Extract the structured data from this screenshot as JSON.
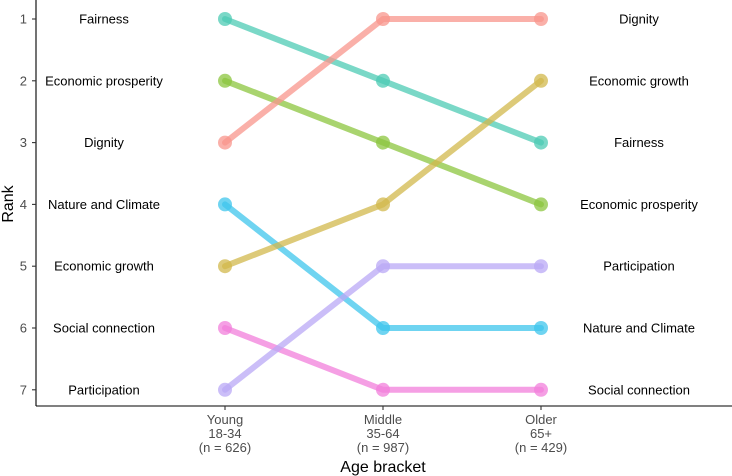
{
  "chart_data": {
    "type": "line",
    "title": "",
    "xlabel": "Age bracket",
    "ylabel": "Rank",
    "categories": [
      {
        "lines": [
          "Young",
          "18-34",
          "(n = 626)"
        ]
      },
      {
        "lines": [
          "Middle",
          "35-64",
          "(n = 987)"
        ]
      },
      {
        "lines": [
          "Older",
          "65+",
          "(n = 429)"
        ]
      }
    ],
    "ylim": [
      1,
      7
    ],
    "y_reversed": true,
    "yticks": [
      1,
      2,
      3,
      4,
      5,
      6,
      7
    ],
    "grid": false,
    "legend": "none",
    "series": [
      {
        "name": "Fairness",
        "color": "#4DCBB4",
        "values": [
          1,
          2,
          3
        ]
      },
      {
        "name": "Economic prosperity",
        "color": "#8CC63F",
        "values": [
          2,
          3,
          4
        ]
      },
      {
        "name": "Dignity",
        "color": "#F8958C",
        "values": [
          3,
          1,
          1
        ]
      },
      {
        "name": "Nature and Climate",
        "color": "#3FC5EC",
        "values": [
          4,
          6,
          6
        ]
      },
      {
        "name": "Economic growth",
        "color": "#D2B84C",
        "values": [
          5,
          4,
          2
        ]
      },
      {
        "name": "Social connection",
        "color": "#F27FDB",
        "values": [
          6,
          7,
          7
        ]
      },
      {
        "name": "Participation",
        "color": "#B9A8F5",
        "values": [
          7,
          5,
          5
        ]
      }
    ],
    "left_labels": [
      "Fairness",
      "Economic prosperity",
      "Dignity",
      "Nature and Climate",
      "Economic growth",
      "Social connection",
      "Participation"
    ],
    "right_labels": [
      "Dignity",
      "Economic growth",
      "Fairness",
      "Economic prosperity",
      "Participation",
      "Nature and Climate",
      "Social connection"
    ]
  }
}
